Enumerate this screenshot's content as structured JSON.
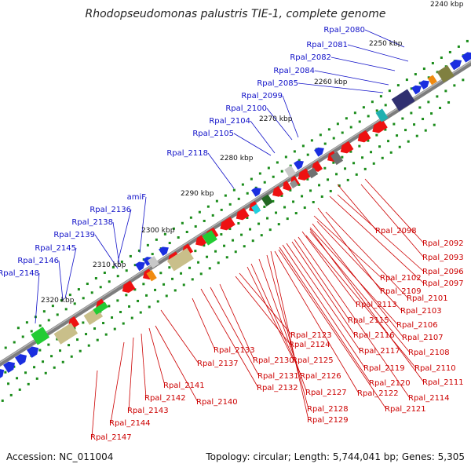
{
  "title": "Rhodopseudomonas palustris TIE-1, complete genome",
  "footer": {
    "accession": "Accession: NC_011004",
    "topology": "Topology: circular; Length: 5,744,041 bp; Genes: 5,305"
  },
  "colors": {
    "backbone": "#8a8a8a",
    "forward_label": "#1010c8",
    "reverse_label": "#cc0000",
    "tick": "#1a8c1a"
  },
  "scale_labels": [
    "2240 kbp",
    "2250 kbp",
    "2260 kbp",
    "2270 kbp",
    "2280 kbp",
    "2290 kbp",
    "2300 kbp",
    "2310 kbp",
    "2320 kbp"
  ],
  "forward_genes": [
    "Rpal_2080",
    "Rpal_2081",
    "Rpal_2082",
    "Rpal_2084",
    "Rpal_2085",
    "Rpal_2099",
    "Rpal_2100",
    "Rpal_2104",
    "Rpal_2105",
    "Rpal_2118",
    "amiF",
    "Rpal_2136",
    "Rpal_2138",
    "Rpal_2139",
    "Rpal_2145",
    "Rpal_2146",
    "Rpal_2148"
  ],
  "reverse_genes": [
    "Rpal_2092",
    "Rpal_2093",
    "Rpal_2096",
    "Rpal_2097",
    "Rpal_2098",
    "Rpal_2101",
    "Rpal_2102",
    "Rpal_2103",
    "Rpal_2106",
    "Rpal_2107",
    "Rpal_2108",
    "Rpal_2109",
    "Rpal_2110",
    "Rpal_2111",
    "Rpal_2113",
    "Rpal_2114",
    "Rpal_2115",
    "Rpal_2116",
    "Rpal_2117",
    "Rpal_2119",
    "Rpal_2120",
    "Rpal_2121",
    "Rpal_2122",
    "Rpal_2123",
    "Rpal_2124",
    "Rpal_2125",
    "Rpal_2126",
    "Rpal_2127",
    "Rpal_2128",
    "Rpal_2129",
    "Rpal_2130",
    "Rpal_2131",
    "Rpal_2132",
    "Rpal_2133",
    "Rpal_2137",
    "Rpal_2140",
    "Rpal_2141",
    "Rpal_2142",
    "Rpal_2143",
    "Rpal_2144",
    "Rpal_2147"
  ]
}
